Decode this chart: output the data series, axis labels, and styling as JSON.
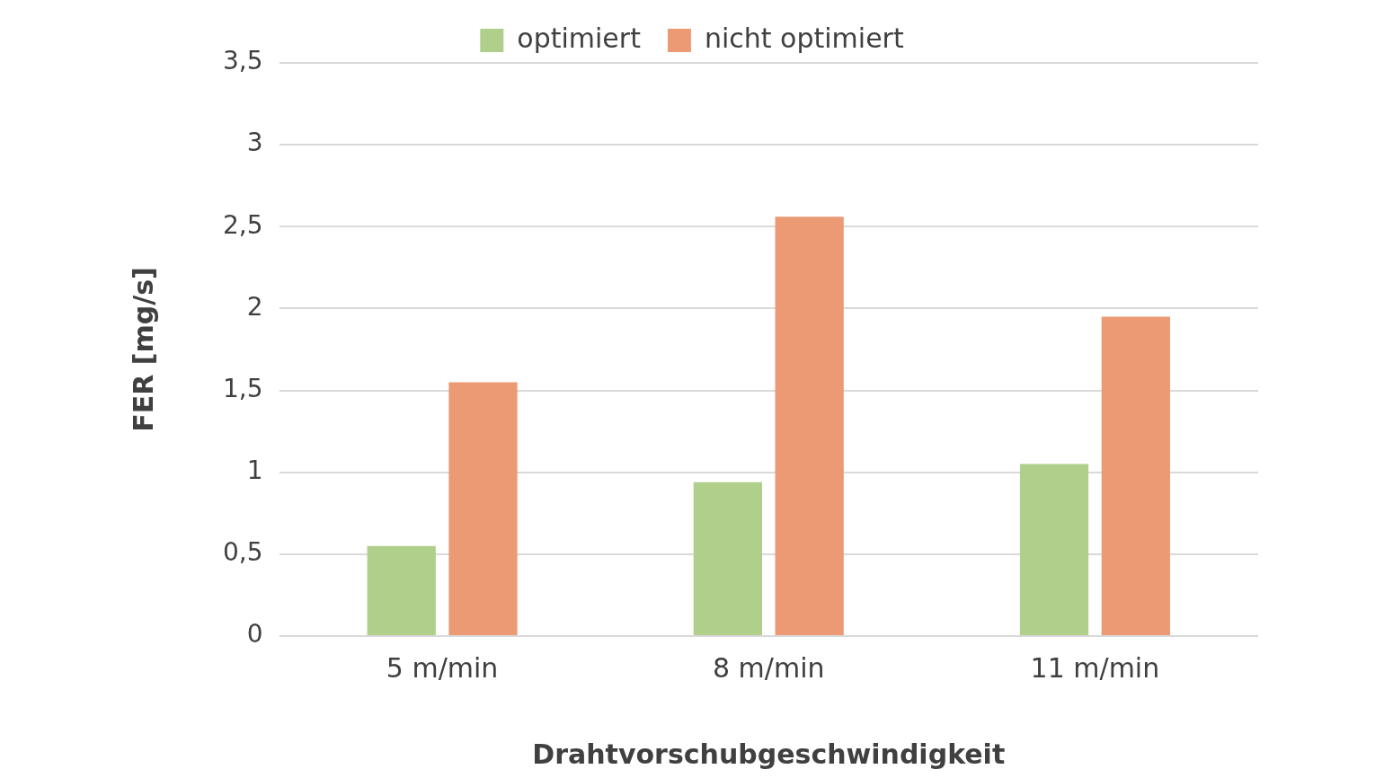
{
  "chart_data": {
    "type": "bar",
    "xlabel": "Drahtvorschubgeschwindigkeit",
    "ylabel": "FER [mg/s]",
    "categories": [
      "5 m/min",
      "8 m/min",
      "11 m/min"
    ],
    "series": [
      {
        "name": "optimiert",
        "color": "#b0cf8b",
        "values": [
          0.55,
          0.94,
          1.05
        ]
      },
      {
        "name": "nicht optimiert",
        "color": "#eb9a74",
        "values": [
          1.55,
          2.56,
          1.95
        ]
      }
    ],
    "ylim": [
      0,
      3.5
    ],
    "yticks": [
      0,
      {
        "value": 0.5,
        "label": "0,5"
      },
      1,
      {
        "value": 1.5,
        "label": "1,5"
      },
      2,
      {
        "value": 2.5,
        "label": "2,5"
      },
      3,
      {
        "value": 3.5,
        "label": "3,5"
      }
    ],
    "grid": "y",
    "legend": "top"
  }
}
